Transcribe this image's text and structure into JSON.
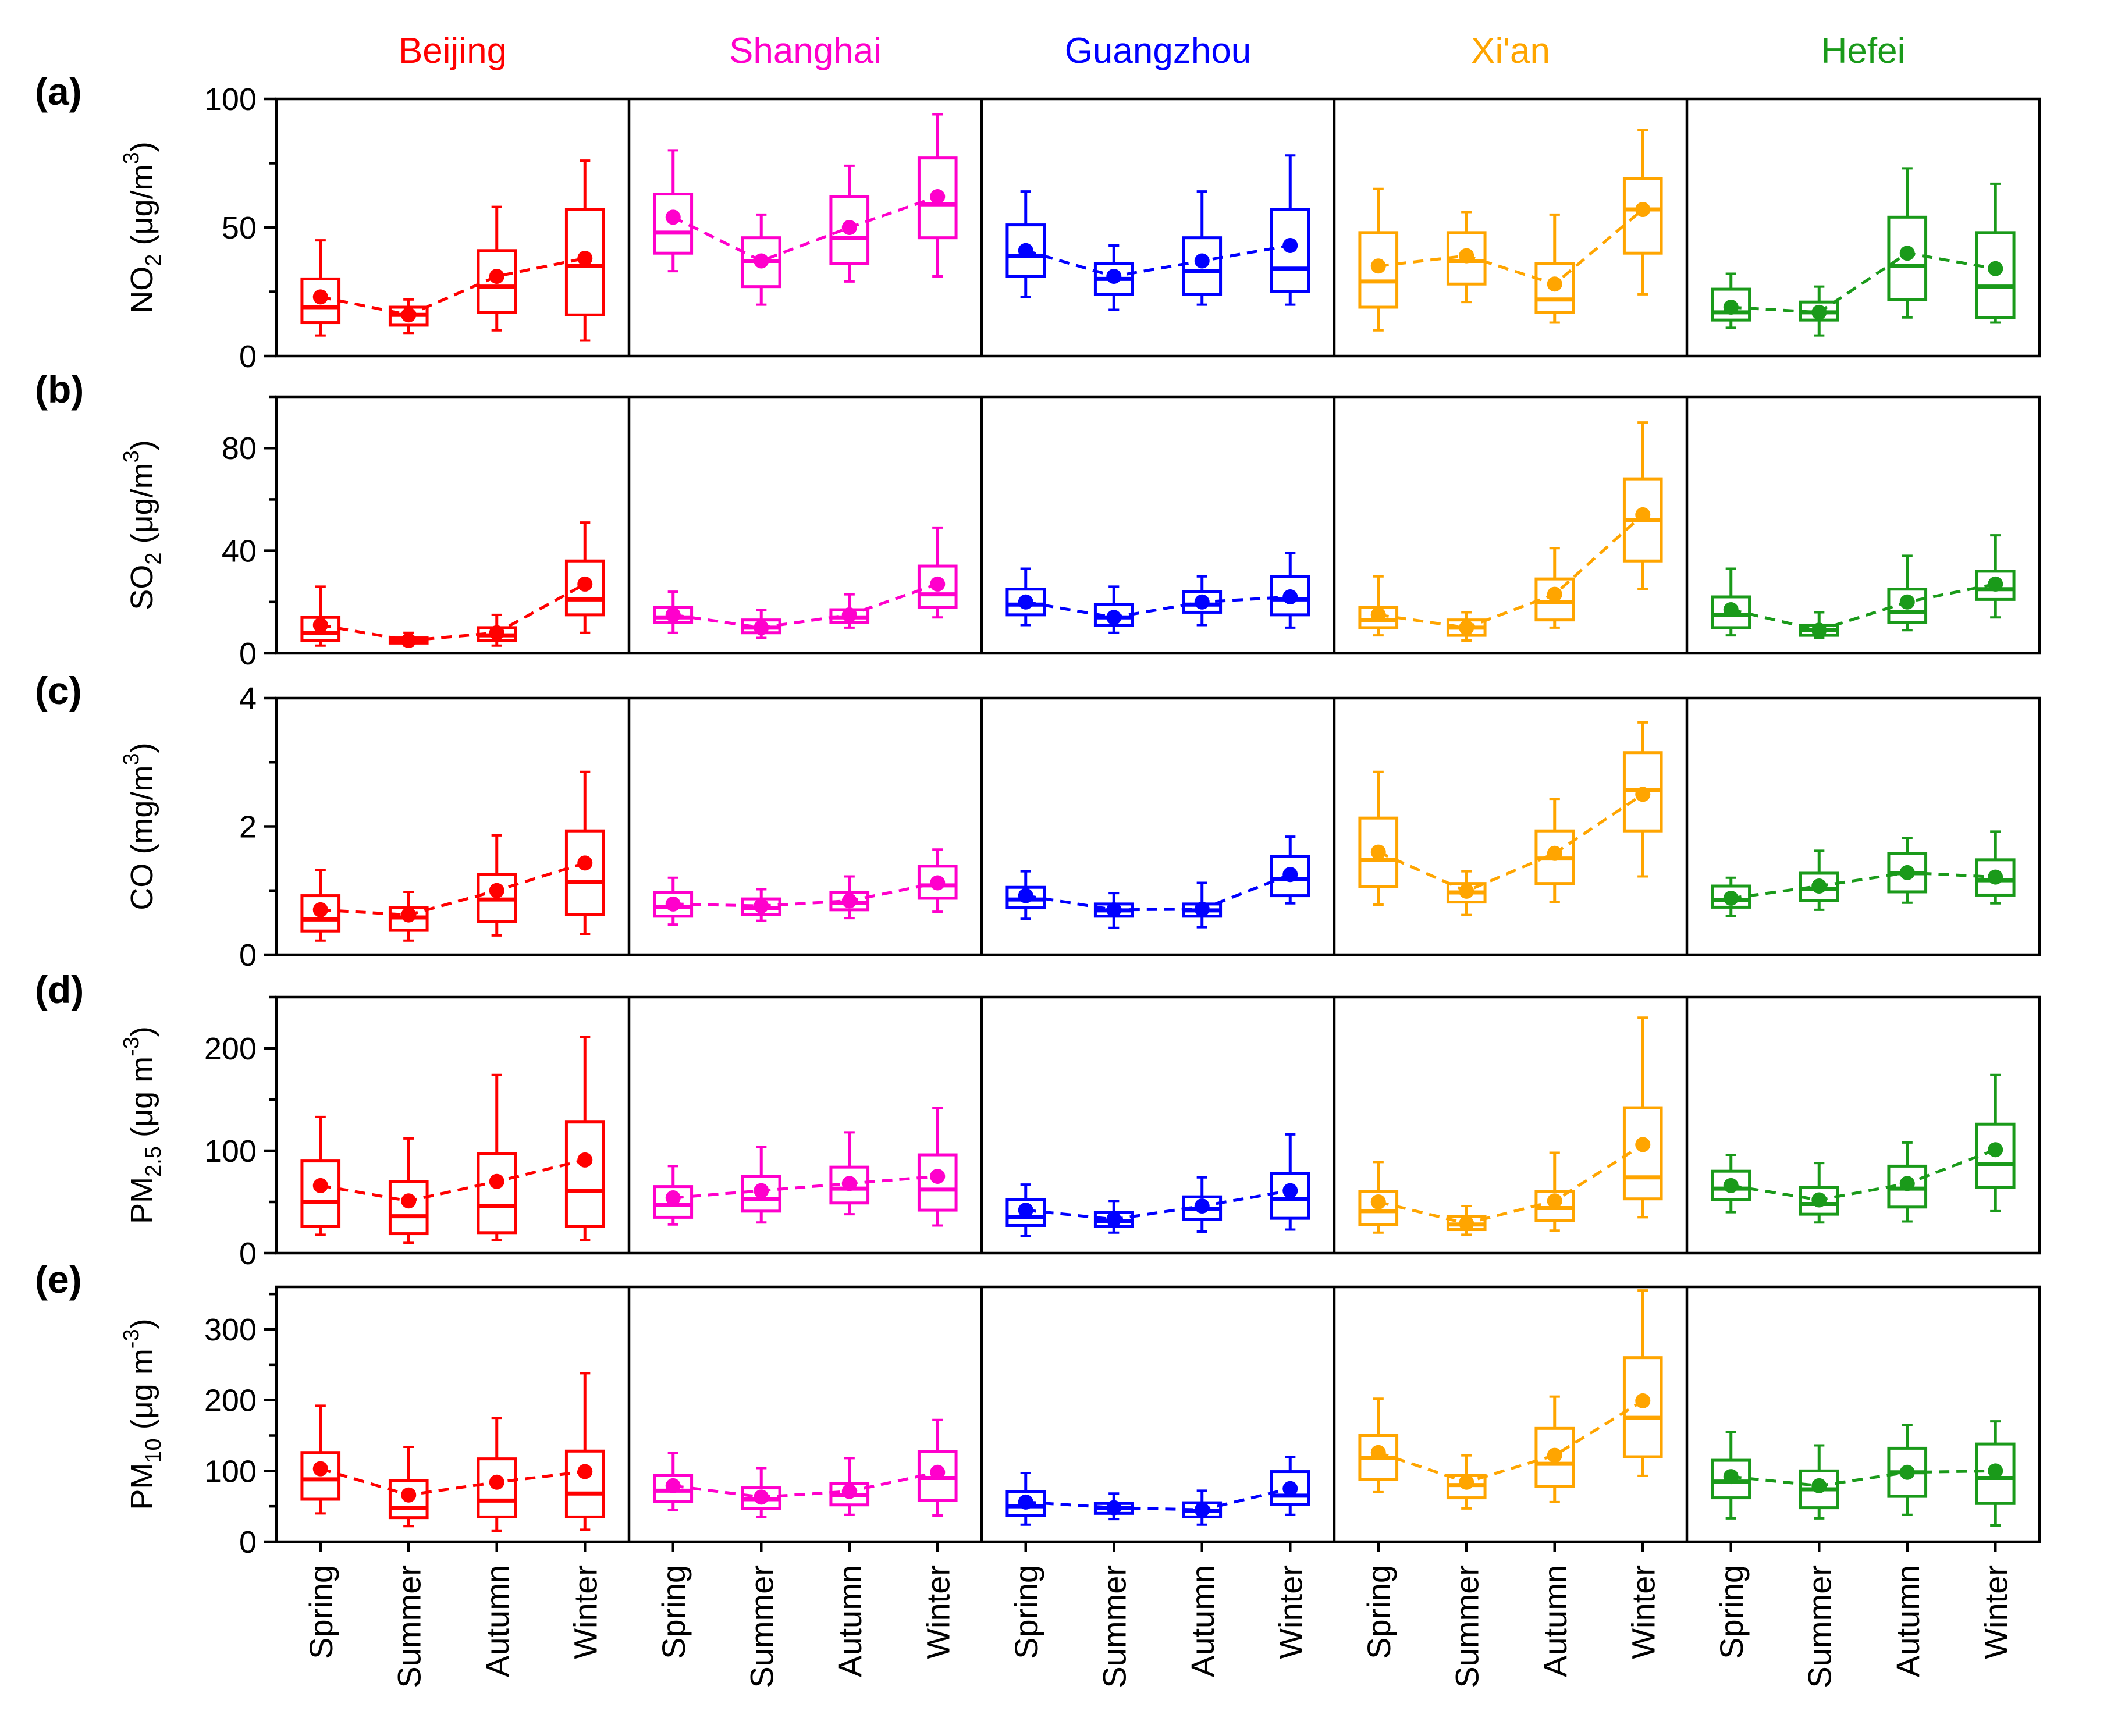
{
  "chart_data": {
    "type": "box",
    "cities": [
      {
        "name": "Beijing",
        "color": "#ff0000"
      },
      {
        "name": "Shanghai",
        "color": "#ff00cc"
      },
      {
        "name": "Guangzhou",
        "color": "#0000ff"
      },
      {
        "name": "Xi'an",
        "color": "#ffa500"
      },
      {
        "name": "Hefei",
        "color": "#1a9a1a"
      }
    ],
    "seasons": [
      "Spring",
      "Summer",
      "Autumn",
      "Winter"
    ],
    "panels": [
      {
        "id": "a",
        "letter": "(a)",
        "ylabel": "NO2 (μg/m3)",
        "ylabel_parts": {
          "main": "NO",
          "sub": "2",
          "unit": " (μg/m",
          "sup": "3",
          "close": ")"
        },
        "ylim": [
          0,
          100
        ],
        "ticks": [
          0,
          50,
          100
        ],
        "data": [
          [
            [
              8,
              13,
              19,
              30,
              45,
              23
            ],
            [
              9,
              12,
              16,
              19,
              22,
              16
            ],
            [
              10,
              17,
              27,
              41,
              58,
              31
            ],
            [
              6,
              16,
              35,
              57,
              76,
              38
            ]
          ],
          [
            [
              33,
              40,
              48,
              63,
              80,
              54
            ],
            [
              20,
              27,
              37,
              46,
              55,
              37
            ],
            [
              29,
              36,
              46,
              62,
              74,
              50
            ],
            [
              31,
              46,
              59,
              77,
              94,
              62
            ]
          ],
          [
            [
              23,
              31,
              39,
              51,
              64,
              41
            ],
            [
              18,
              24,
              30,
              36,
              43,
              31
            ],
            [
              20,
              24,
              33,
              46,
              64,
              37
            ],
            [
              20,
              25,
              34,
              57,
              78,
              43
            ]
          ],
          [
            [
              10,
              19,
              29,
              48,
              65,
              35
            ],
            [
              21,
              28,
              37,
              48,
              56,
              39
            ],
            [
              13,
              17,
              22,
              36,
              55,
              28
            ],
            [
              24,
              40,
              57,
              69,
              88,
              57
            ]
          ],
          [
            [
              11,
              14,
              17,
              26,
              32,
              19
            ],
            [
              8,
              14,
              17,
              21,
              27,
              17
            ],
            [
              15,
              22,
              35,
              54,
              73,
              40
            ],
            [
              13,
              15,
              27,
              48,
              67,
              34
            ]
          ]
        ]
      },
      {
        "id": "b",
        "letter": "(b)",
        "ylabel": "SO2 (μg/m3)",
        "ylabel_parts": {
          "main": "SO",
          "sub": "2",
          "unit": " (μg/m",
          "sup": "3",
          "close": ")"
        },
        "ylim": [
          0,
          100
        ],
        "ticks": [
          0,
          40,
          80
        ],
        "data": [
          [
            [
              3,
              5,
              8,
              14,
              26,
              11
            ],
            [
              3,
              4,
              5,
              6,
              8,
              5
            ],
            [
              3,
              5,
              7,
              10,
              15,
              8
            ],
            [
              8,
              15,
              21,
              36,
              51,
              27
            ]
          ],
          [
            [
              8,
              12,
              14,
              18,
              24,
              15
            ],
            [
              6,
              8,
              10,
              13,
              17,
              10
            ],
            [
              10,
              12,
              14,
              17,
              23,
              15
            ],
            [
              14,
              18,
              23,
              34,
              49,
              27
            ]
          ],
          [
            [
              11,
              15,
              19,
              25,
              33,
              20
            ],
            [
              8,
              11,
              14,
              19,
              26,
              14
            ],
            [
              11,
              16,
              19,
              24,
              30,
              20
            ],
            [
              10,
              15,
              21,
              30,
              39,
              22
            ]
          ],
          [
            [
              7,
              10,
              13,
              18,
              30,
              15
            ],
            [
              5,
              7,
              10,
              13,
              16,
              10
            ],
            [
              10,
              13,
              20,
              29,
              41,
              23
            ],
            [
              25,
              36,
              52,
              68,
              90,
              54
            ]
          ],
          [
            [
              7,
              10,
              15,
              22,
              33,
              17
            ],
            [
              6,
              7,
              9,
              11,
              16,
              9
            ],
            [
              9,
              12,
              16,
              25,
              38,
              20
            ],
            [
              14,
              21,
              25,
              32,
              46,
              27
            ]
          ]
        ]
      },
      {
        "id": "c",
        "letter": "(c)",
        "ylabel": "CO (mg/m3)",
        "ylabel_parts": {
          "main": "CO",
          "sub": "",
          "unit": " (mg/m",
          "sup": "3",
          "close": ")"
        },
        "ylim": [
          0,
          4
        ],
        "ticks": [
          0,
          2,
          4
        ],
        "data": [
          [
            [
              0.22,
              0.37,
              0.55,
              0.92,
              1.32,
              0.7
            ],
            [
              0.22,
              0.38,
              0.58,
              0.73,
              0.98,
              0.62
            ],
            [
              0.3,
              0.52,
              0.86,
              1.25,
              1.86,
              1.0
            ],
            [
              0.32,
              0.63,
              1.13,
              1.93,
              2.85,
              1.43
            ]
          ],
          [
            [
              0.47,
              0.6,
              0.74,
              0.97,
              1.2,
              0.79
            ],
            [
              0.53,
              0.63,
              0.73,
              0.87,
              1.02,
              0.76
            ],
            [
              0.57,
              0.7,
              0.81,
              0.97,
              1.22,
              0.84
            ],
            [
              0.67,
              0.88,
              1.08,
              1.38,
              1.64,
              1.12
            ]
          ],
          [
            [
              0.56,
              0.73,
              0.86,
              1.05,
              1.3,
              0.92
            ],
            [
              0.42,
              0.6,
              0.69,
              0.79,
              0.96,
              0.7
            ],
            [
              0.43,
              0.6,
              0.69,
              0.79,
              1.12,
              0.71
            ],
            [
              0.8,
              0.92,
              1.18,
              1.53,
              1.84,
              1.25
            ]
          ],
          [
            [
              0.78,
              1.06,
              1.48,
              2.13,
              2.85,
              1.6
            ],
            [
              0.62,
              0.82,
              0.97,
              1.11,
              1.3,
              0.99
            ],
            [
              0.82,
              1.11,
              1.5,
              1.93,
              2.43,
              1.58
            ],
            [
              1.22,
              1.93,
              2.57,
              3.15,
              3.62,
              2.5
            ]
          ],
          [
            [
              0.6,
              0.74,
              0.85,
              1.07,
              1.2,
              0.88
            ],
            [
              0.7,
              0.84,
              1.02,
              1.27,
              1.62,
              1.07
            ],
            [
              0.81,
              0.98,
              1.27,
              1.58,
              1.82,
              1.28
            ],
            [
              0.8,
              0.93,
              1.16,
              1.48,
              1.92,
              1.21
            ]
          ]
        ]
      },
      {
        "id": "d",
        "letter": "(d)",
        "ylabel": "PM2.5 (μg m-3)",
        "ylabel_parts": {
          "main": "PM",
          "sub": "2.5",
          "unit": " (μg m",
          "sup": "-3",
          "close": ")"
        },
        "ylim": [
          0,
          250
        ],
        "ticks": [
          0,
          100,
          200
        ],
        "data": [
          [
            [
              18,
              26,
              50,
              90,
              133,
              66
            ],
            [
              10,
              19,
              36,
              70,
              112,
              51
            ],
            [
              13,
              20,
              46,
              97,
              174,
              70
            ],
            [
              13,
              26,
              61,
              128,
              211,
              91
            ]
          ],
          [
            [
              28,
              35,
              47,
              65,
              85,
              54
            ],
            [
              30,
              41,
              53,
              75,
              104,
              61
            ],
            [
              38,
              49,
              63,
              84,
              118,
              68
            ],
            [
              27,
              42,
              62,
              96,
              142,
              75
            ]
          ],
          [
            [
              17,
              27,
              35,
              52,
              67,
              42
            ],
            [
              20,
              26,
              31,
              40,
              51,
              33
            ],
            [
              21,
              33,
              43,
              55,
              74,
              46
            ],
            [
              23,
              34,
              53,
              78,
              116,
              61
            ]
          ],
          [
            [
              20,
              28,
              41,
              60,
              89,
              50
            ],
            [
              18,
              23,
              28,
              36,
              46,
              29
            ],
            [
              22,
              32,
              44,
              60,
              98,
              51
            ],
            [
              35,
              53,
              74,
              142,
              230,
              106
            ]
          ],
          [
            [
              40,
              52,
              63,
              80,
              96,
              66
            ],
            [
              30,
              38,
              48,
              64,
              88,
              52
            ],
            [
              31,
              45,
              63,
              85,
              108,
              68
            ],
            [
              41,
              64,
              87,
              126,
              174,
              101
            ]
          ]
        ]
      },
      {
        "id": "e",
        "letter": "(e)",
        "ylabel": "PM10 (μg m-3)",
        "ylabel_parts": {
          "main": "PM",
          "sub": "10",
          "unit": " (μg m",
          "sup": "-3",
          "close": ")"
        },
        "ylim": [
          0,
          360
        ],
        "ticks": [
          0,
          100,
          200,
          300
        ],
        "data": [
          [
            [
              40,
              60,
              88,
              126,
              192,
              103
            ],
            [
              22,
              34,
              48,
              86,
              134,
              66
            ],
            [
              15,
              35,
              58,
              117,
              175,
              84
            ],
            [
              17,
              35,
              68,
              128,
              238,
              99
            ]
          ],
          [
            [
              45,
              57,
              72,
              94,
              125,
              79
            ],
            [
              35,
              47,
              60,
              76,
              104,
              63
            ],
            [
              38,
              52,
              66,
              82,
              118,
              71
            ],
            [
              37,
              58,
              90,
              127,
              172,
              98
            ]
          ],
          [
            [
              24,
              37,
              50,
              71,
              97,
              56
            ],
            [
              32,
              40,
              48,
              54,
              68,
              48
            ],
            [
              24,
              35,
              44,
              55,
              72,
              45
            ],
            [
              38,
              53,
              65,
              99,
              120,
              75
            ]
          ],
          [
            [
              70,
              88,
              118,
              150,
              202,
              126
            ],
            [
              47,
              62,
              80,
              94,
              122,
              84
            ],
            [
              56,
              78,
              110,
              160,
              205,
              122
            ],
            [
              93,
              120,
              175,
              260,
              355,
              199
            ]
          ],
          [
            [
              33,
              62,
              85,
              115,
              155,
              92
            ],
            [
              33,
              48,
              74,
              100,
              136,
              79
            ],
            [
              38,
              64,
              98,
              132,
              165,
              98
            ],
            [
              23,
              54,
              90,
              138,
              170,
              100
            ]
          ]
        ]
      }
    ]
  }
}
